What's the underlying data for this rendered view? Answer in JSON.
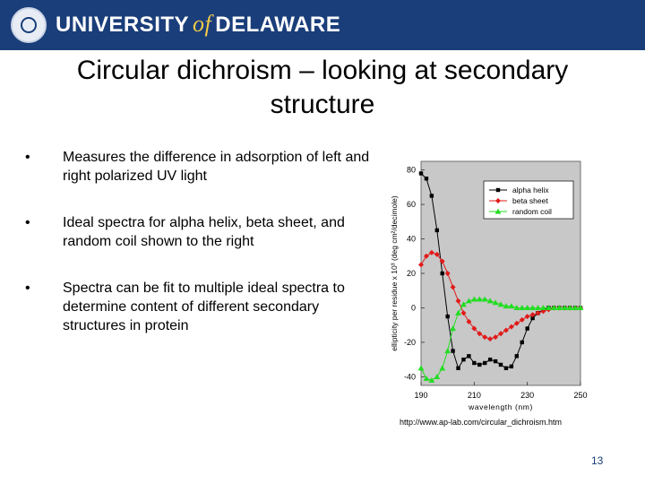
{
  "header": {
    "brand_left": "UNIVERSITY",
    "brand_of": "of",
    "brand_right": "DELAWARE"
  },
  "slide": {
    "title": "Circular dichroism – looking at secondary structure",
    "bullets": [
      "Measures the difference in adsorption of left and right polarized UV light",
      "Ideal spectra for alpha helix, beta sheet, and random coil shown to the right",
      "Spectra can be fit to multiple ideal spectra to determine content of different secondary structures in protein"
    ],
    "source": "http://www.ap-lab.com/circular_dichroism.htm",
    "page_number": "13"
  },
  "chart_data": {
    "type": "line",
    "title": "",
    "xlabel": "wavelength (nm)",
    "ylabel": "ellipticity per residue x 10³ (deg cm²/decimole)",
    "xlim": [
      190,
      250
    ],
    "ylim": [
      -45,
      85
    ],
    "xticks": [
      190,
      210,
      230,
      250
    ],
    "yticks": [
      -40,
      -20,
      0,
      20,
      40,
      60,
      80
    ],
    "legend_position": "top-right",
    "grid": false,
    "background": "#c8c8c8",
    "series": [
      {
        "name": "alpha helix",
        "color": "#000000",
        "marker": "square",
        "x": [
          190,
          192,
          194,
          196,
          198,
          200,
          202,
          204,
          206,
          208,
          210,
          212,
          214,
          216,
          218,
          220,
          222,
          224,
          226,
          228,
          230,
          232,
          234,
          236,
          238,
          240,
          242,
          244,
          246,
          248,
          250
        ],
        "y": [
          78,
          75,
          65,
          45,
          20,
          -5,
          -25,
          -35,
          -30,
          -28,
          -32,
          -33,
          -32,
          -30,
          -31,
          -33,
          -35,
          -34,
          -28,
          -20,
          -12,
          -6,
          -3,
          -1,
          0,
          0,
          0,
          0,
          0,
          0,
          0
        ]
      },
      {
        "name": "beta sheet",
        "color": "#e21a1a",
        "marker": "diamond",
        "x": [
          190,
          192,
          194,
          196,
          198,
          200,
          202,
          204,
          206,
          208,
          210,
          212,
          214,
          216,
          218,
          220,
          222,
          224,
          226,
          228,
          230,
          232,
          234,
          236,
          238,
          240,
          242,
          244,
          246,
          248,
          250
        ],
        "y": [
          25,
          30,
          32,
          31,
          27,
          20,
          12,
          4,
          -3,
          -8,
          -12,
          -15,
          -17,
          -18,
          -17,
          -15,
          -13,
          -11,
          -9,
          -7,
          -5,
          -4,
          -3,
          -2,
          -1,
          0,
          0,
          0,
          0,
          0,
          0
        ]
      },
      {
        "name": "random coil",
        "color": "#22dd22",
        "marker": "triangle",
        "x": [
          190,
          192,
          194,
          196,
          198,
          200,
          202,
          204,
          206,
          208,
          210,
          212,
          214,
          216,
          218,
          220,
          222,
          224,
          226,
          228,
          230,
          232,
          234,
          236,
          238,
          240,
          242,
          244,
          246,
          248,
          250
        ],
        "y": [
          -35,
          -41,
          -42,
          -40,
          -35,
          -25,
          -12,
          -3,
          2,
          4,
          5,
          5,
          5,
          4,
          3,
          2,
          1,
          1,
          0,
          0,
          0,
          0,
          0,
          0,
          0,
          0,
          0,
          0,
          0,
          0,
          0
        ]
      }
    ]
  }
}
